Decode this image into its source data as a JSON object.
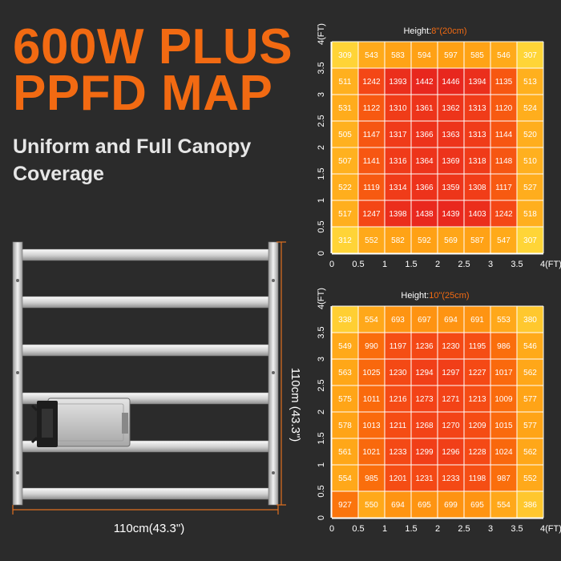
{
  "header": {
    "title_lines": [
      "600W PLUS",
      "PPFD MAP"
    ],
    "subtitle_lines": [
      "Uniform and Full Canopy",
      "Coverage"
    ]
  },
  "product": {
    "height_label": "110cm (43.3\")",
    "width_label": "110cm(43.3\")"
  },
  "colors": {
    "background": "#2b2b2b",
    "title": "#f26a12",
    "subtitle": "#e6e6e6",
    "height_highlight": "#f26a12",
    "dimension_line": "#e07020"
  },
  "chart_data": [
    {
      "type": "heatmap",
      "title_prefix": "Height:",
      "title_value": "8\"(20cm)",
      "x_ticks": [
        "0",
        "0.5",
        "1",
        "1.5",
        "2",
        "2.5",
        "3",
        "3.5",
        "4(FT)"
      ],
      "y_ticks": [
        "0",
        "0.5",
        "1",
        "1.5",
        "2",
        "2.5",
        "3",
        "3.5",
        "4(FT)"
      ],
      "xlim": [
        0,
        4
      ],
      "ylim": [
        0,
        4
      ],
      "rows": [
        [
          309,
          543,
          583,
          594,
          597,
          585,
          546,
          307
        ],
        [
          511,
          1242,
          1393,
          1442,
          1446,
          1394,
          1135,
          513
        ],
        [
          531,
          1122,
          1310,
          1361,
          1362,
          1313,
          1120,
          524
        ],
        [
          505,
          1147,
          1317,
          1366,
          1363,
          1313,
          1144,
          520
        ],
        [
          507,
          1141,
          1316,
          1364,
          1369,
          1318,
          1148,
          510
        ],
        [
          522,
          1119,
          1314,
          1366,
          1359,
          1308,
          1117,
          527
        ],
        [
          517,
          1247,
          1398,
          1438,
          1439,
          1403,
          1242,
          518
        ],
        [
          312,
          552,
          582,
          592,
          569,
          587,
          547,
          307
        ]
      ]
    },
    {
      "type": "heatmap",
      "title_prefix": "Height:",
      "title_value": "10\"(25cm)",
      "x_ticks": [
        "0",
        "0.5",
        "1",
        "1.5",
        "2",
        "2.5",
        "3",
        "3.5",
        "4(FT)"
      ],
      "y_ticks": [
        "0",
        "0.5",
        "1",
        "1.5",
        "2",
        "2.5",
        "3",
        "3.5",
        "4(FT)"
      ],
      "xlim": [
        0,
        4
      ],
      "ylim": [
        0,
        4
      ],
      "rows": [
        [
          338,
          554,
          693,
          697,
          694,
          691,
          553,
          380
        ],
        [
          549,
          990,
          1197,
          1236,
          1230,
          1195,
          986,
          546
        ],
        [
          563,
          1025,
          1230,
          1294,
          1297,
          1227,
          1017,
          562
        ],
        [
          575,
          1011,
          1216,
          1273,
          1271,
          1213,
          1009,
          577
        ],
        [
          578,
          1013,
          1211,
          1268,
          1270,
          1209,
          1015,
          577
        ],
        [
          561,
          1021,
          1233,
          1299,
          1296,
          1228,
          1024,
          562
        ],
        [
          554,
          985,
          1201,
          1231,
          1233,
          1198,
          987,
          552
        ],
        [
          927,
          550,
          694,
          695,
          699,
          695,
          554,
          386
        ]
      ]
    }
  ]
}
